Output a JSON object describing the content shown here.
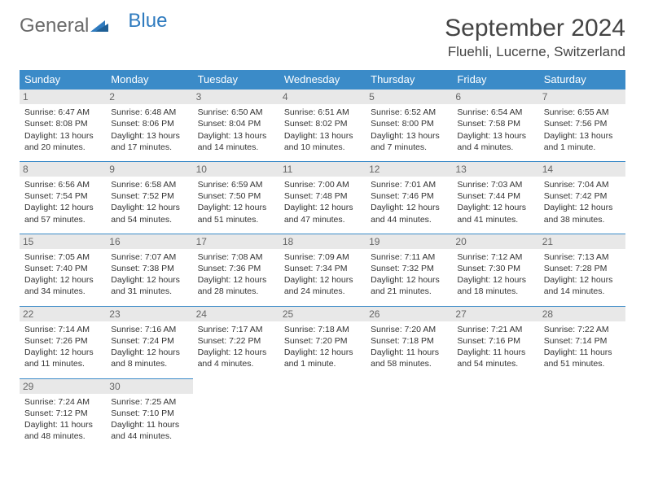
{
  "logo": {
    "textGeneral": "General",
    "textBlue": "Blue"
  },
  "title": "September 2024",
  "location": "Fluehli, Lucerne, Switzerland",
  "colors": {
    "headerBg": "#3b8bc8",
    "headerText": "#ffffff",
    "dayNumBg": "#e8e8e8",
    "dayNumText": "#666666",
    "bodyText": "#333333",
    "borderColor": "#3b8bc8",
    "logoGray": "#6a6a6a",
    "logoBlue": "#2f7bbf"
  },
  "weekdays": [
    "Sunday",
    "Monday",
    "Tuesday",
    "Wednesday",
    "Thursday",
    "Friday",
    "Saturday"
  ],
  "days": [
    {
      "n": "1",
      "sunrise": "Sunrise: 6:47 AM",
      "sunset": "Sunset: 8:08 PM",
      "day1": "Daylight: 13 hours",
      "day2": "and 20 minutes."
    },
    {
      "n": "2",
      "sunrise": "Sunrise: 6:48 AM",
      "sunset": "Sunset: 8:06 PM",
      "day1": "Daylight: 13 hours",
      "day2": "and 17 minutes."
    },
    {
      "n": "3",
      "sunrise": "Sunrise: 6:50 AM",
      "sunset": "Sunset: 8:04 PM",
      "day1": "Daylight: 13 hours",
      "day2": "and 14 minutes."
    },
    {
      "n": "4",
      "sunrise": "Sunrise: 6:51 AM",
      "sunset": "Sunset: 8:02 PM",
      "day1": "Daylight: 13 hours",
      "day2": "and 10 minutes."
    },
    {
      "n": "5",
      "sunrise": "Sunrise: 6:52 AM",
      "sunset": "Sunset: 8:00 PM",
      "day1": "Daylight: 13 hours",
      "day2": "and 7 minutes."
    },
    {
      "n": "6",
      "sunrise": "Sunrise: 6:54 AM",
      "sunset": "Sunset: 7:58 PM",
      "day1": "Daylight: 13 hours",
      "day2": "and 4 minutes."
    },
    {
      "n": "7",
      "sunrise": "Sunrise: 6:55 AM",
      "sunset": "Sunset: 7:56 PM",
      "day1": "Daylight: 13 hours",
      "day2": "and 1 minute."
    },
    {
      "n": "8",
      "sunrise": "Sunrise: 6:56 AM",
      "sunset": "Sunset: 7:54 PM",
      "day1": "Daylight: 12 hours",
      "day2": "and 57 minutes."
    },
    {
      "n": "9",
      "sunrise": "Sunrise: 6:58 AM",
      "sunset": "Sunset: 7:52 PM",
      "day1": "Daylight: 12 hours",
      "day2": "and 54 minutes."
    },
    {
      "n": "10",
      "sunrise": "Sunrise: 6:59 AM",
      "sunset": "Sunset: 7:50 PM",
      "day1": "Daylight: 12 hours",
      "day2": "and 51 minutes."
    },
    {
      "n": "11",
      "sunrise": "Sunrise: 7:00 AM",
      "sunset": "Sunset: 7:48 PM",
      "day1": "Daylight: 12 hours",
      "day2": "and 47 minutes."
    },
    {
      "n": "12",
      "sunrise": "Sunrise: 7:01 AM",
      "sunset": "Sunset: 7:46 PM",
      "day1": "Daylight: 12 hours",
      "day2": "and 44 minutes."
    },
    {
      "n": "13",
      "sunrise": "Sunrise: 7:03 AM",
      "sunset": "Sunset: 7:44 PM",
      "day1": "Daylight: 12 hours",
      "day2": "and 41 minutes."
    },
    {
      "n": "14",
      "sunrise": "Sunrise: 7:04 AM",
      "sunset": "Sunset: 7:42 PM",
      "day1": "Daylight: 12 hours",
      "day2": "and 38 minutes."
    },
    {
      "n": "15",
      "sunrise": "Sunrise: 7:05 AM",
      "sunset": "Sunset: 7:40 PM",
      "day1": "Daylight: 12 hours",
      "day2": "and 34 minutes."
    },
    {
      "n": "16",
      "sunrise": "Sunrise: 7:07 AM",
      "sunset": "Sunset: 7:38 PM",
      "day1": "Daylight: 12 hours",
      "day2": "and 31 minutes."
    },
    {
      "n": "17",
      "sunrise": "Sunrise: 7:08 AM",
      "sunset": "Sunset: 7:36 PM",
      "day1": "Daylight: 12 hours",
      "day2": "and 28 minutes."
    },
    {
      "n": "18",
      "sunrise": "Sunrise: 7:09 AM",
      "sunset": "Sunset: 7:34 PM",
      "day1": "Daylight: 12 hours",
      "day2": "and 24 minutes."
    },
    {
      "n": "19",
      "sunrise": "Sunrise: 7:11 AM",
      "sunset": "Sunset: 7:32 PM",
      "day1": "Daylight: 12 hours",
      "day2": "and 21 minutes."
    },
    {
      "n": "20",
      "sunrise": "Sunrise: 7:12 AM",
      "sunset": "Sunset: 7:30 PM",
      "day1": "Daylight: 12 hours",
      "day2": "and 18 minutes."
    },
    {
      "n": "21",
      "sunrise": "Sunrise: 7:13 AM",
      "sunset": "Sunset: 7:28 PM",
      "day1": "Daylight: 12 hours",
      "day2": "and 14 minutes."
    },
    {
      "n": "22",
      "sunrise": "Sunrise: 7:14 AM",
      "sunset": "Sunset: 7:26 PM",
      "day1": "Daylight: 12 hours",
      "day2": "and 11 minutes."
    },
    {
      "n": "23",
      "sunrise": "Sunrise: 7:16 AM",
      "sunset": "Sunset: 7:24 PM",
      "day1": "Daylight: 12 hours",
      "day2": "and 8 minutes."
    },
    {
      "n": "24",
      "sunrise": "Sunrise: 7:17 AM",
      "sunset": "Sunset: 7:22 PM",
      "day1": "Daylight: 12 hours",
      "day2": "and 4 minutes."
    },
    {
      "n": "25",
      "sunrise": "Sunrise: 7:18 AM",
      "sunset": "Sunset: 7:20 PM",
      "day1": "Daylight: 12 hours",
      "day2": "and 1 minute."
    },
    {
      "n": "26",
      "sunrise": "Sunrise: 7:20 AM",
      "sunset": "Sunset: 7:18 PM",
      "day1": "Daylight: 11 hours",
      "day2": "and 58 minutes."
    },
    {
      "n": "27",
      "sunrise": "Sunrise: 7:21 AM",
      "sunset": "Sunset: 7:16 PM",
      "day1": "Daylight: 11 hours",
      "day2": "and 54 minutes."
    },
    {
      "n": "28",
      "sunrise": "Sunrise: 7:22 AM",
      "sunset": "Sunset: 7:14 PM",
      "day1": "Daylight: 11 hours",
      "day2": "and 51 minutes."
    },
    {
      "n": "29",
      "sunrise": "Sunrise: 7:24 AM",
      "sunset": "Sunset: 7:12 PM",
      "day1": "Daylight: 11 hours",
      "day2": "and 48 minutes."
    },
    {
      "n": "30",
      "sunrise": "Sunrise: 7:25 AM",
      "sunset": "Sunset: 7:10 PM",
      "day1": "Daylight: 11 hours",
      "day2": "and 44 minutes."
    }
  ]
}
